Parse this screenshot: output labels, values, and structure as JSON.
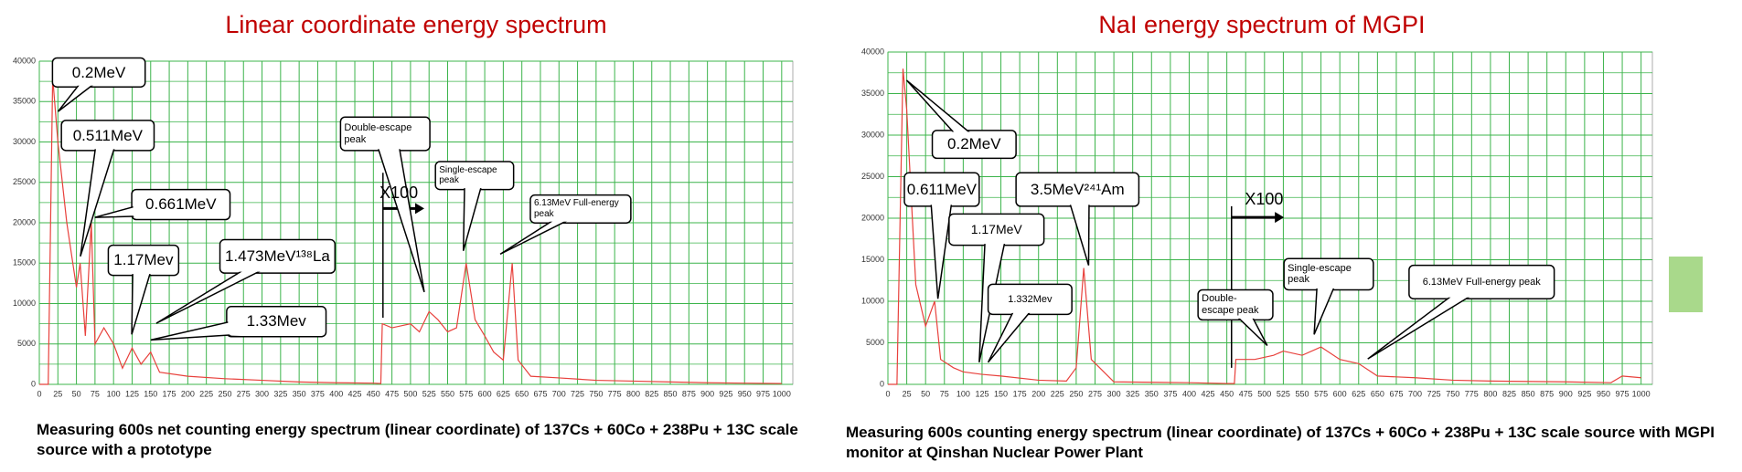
{
  "chart_data": [
    {
      "type": "line",
      "title": "Linear coordinate energy spectrum",
      "caption": "Measuring 600s net counting energy spectrum (linear coordinate) of 137Cs + 60Co + 238Pu + 13C scale source with a prototype",
      "xlim": [
        0,
        1015
      ],
      "ylim": [
        0,
        40000
      ],
      "xticks": [
        0,
        25,
        50,
        75,
        100,
        125,
        150,
        175,
        200,
        225,
        250,
        275,
        300,
        325,
        350,
        375,
        400,
        425,
        450,
        475,
        500,
        525,
        550,
        575,
        600,
        625,
        650,
        675,
        700,
        725,
        750,
        775,
        800,
        825,
        850,
        875,
        900,
        925,
        950,
        975,
        1000
      ],
      "yticks": [
        0,
        5000,
        10000,
        15000,
        20000,
        25000,
        30000,
        35000,
        40000
      ],
      "grid": true,
      "x": [
        0,
        12,
        18,
        25,
        37,
        50,
        55,
        62,
        70,
        75,
        87,
        100,
        112,
        125,
        137,
        150,
        162,
        200,
        250,
        300,
        350,
        400,
        450,
        460,
        462,
        475,
        500,
        512,
        525,
        537,
        550,
        562,
        575,
        587,
        600,
        612,
        625,
        637,
        645,
        662,
        700,
        750,
        800,
        850,
        900,
        950,
        1000
      ],
      "series": [
        {
          "color": "#e8413c",
          "values": [
            0,
            0,
            38000,
            30000,
            20000,
            12000,
            15000,
            6000,
            20000,
            5000,
            7000,
            5000,
            2000,
            4500,
            2500,
            4000,
            1500,
            1000,
            700,
            500,
            300,
            200,
            150,
            100,
            7500,
            7000,
            7500,
            6500,
            9000,
            8000,
            6500,
            7000,
            15000,
            8000,
            6000,
            4000,
            3000,
            15000,
            3000,
            1000,
            800,
            500,
            400,
            300,
            200,
            150,
            100
          ]
        }
      ],
      "annotations": [
        "0.2MeV",
        "0.511MeV",
        "0.661MeV",
        "1.17Mev",
        "1.473MeV¹³⁸La",
        "1.33Mev",
        "Double-escape peak",
        "Single-escape peak",
        "6.13MeV Full-energy peak"
      ],
      "scale_note": "X100"
    },
    {
      "type": "line",
      "title": "NaI energy spectrum of MGPI",
      "caption": "Measuring 600s counting energy spectrum (linear coordinate) of 137Cs + 60Co + 238Pu + 13C scale source with MGPI monitor at Qinshan Nuclear Power Plant",
      "xlim": [
        0,
        1015
      ],
      "ylim": [
        0,
        40000
      ],
      "xticks": [
        0,
        25,
        50,
        75,
        100,
        125,
        150,
        175,
        200,
        225,
        250,
        275,
        300,
        325,
        350,
        375,
        400,
        425,
        450,
        475,
        500,
        525,
        550,
        575,
        600,
        625,
        650,
        675,
        700,
        725,
        750,
        775,
        800,
        825,
        850,
        875,
        900,
        925,
        950,
        975,
        1000
      ],
      "yticks": [
        0,
        5000,
        10000,
        15000,
        20000,
        25000,
        30000,
        35000,
        40000
      ],
      "grid": true,
      "x": [
        0,
        12,
        20,
        25,
        37,
        50,
        62,
        70,
        87,
        100,
        125,
        150,
        200,
        237,
        250,
        260,
        270,
        300,
        400,
        450,
        460,
        462,
        487,
        512,
        525,
        550,
        575,
        600,
        625,
        650,
        700,
        750,
        800,
        900,
        960,
        975,
        1000
      ],
      "series": [
        {
          "color": "#e8413c",
          "values": [
            0,
            0,
            38000,
            33000,
            12000,
            7000,
            10000,
            3000,
            2000,
            1500,
            1200,
            1000,
            500,
            400,
            2000,
            14000,
            3000,
            300,
            200,
            100,
            100,
            3000,
            3000,
            3500,
            4000,
            3500,
            4500,
            3000,
            2500,
            1000,
            800,
            500,
            400,
            300,
            200,
            1000,
            800
          ]
        }
      ],
      "annotations": [
        "0.2MeV",
        "0.611MeV",
        "1.17MeV",
        "3.5MeV²⁴¹Am",
        "1.332Mev",
        "Double-escape peak",
        "Single-escape peak",
        "6.13MeV Full-energy peak"
      ],
      "scale_note": "X100"
    }
  ]
}
